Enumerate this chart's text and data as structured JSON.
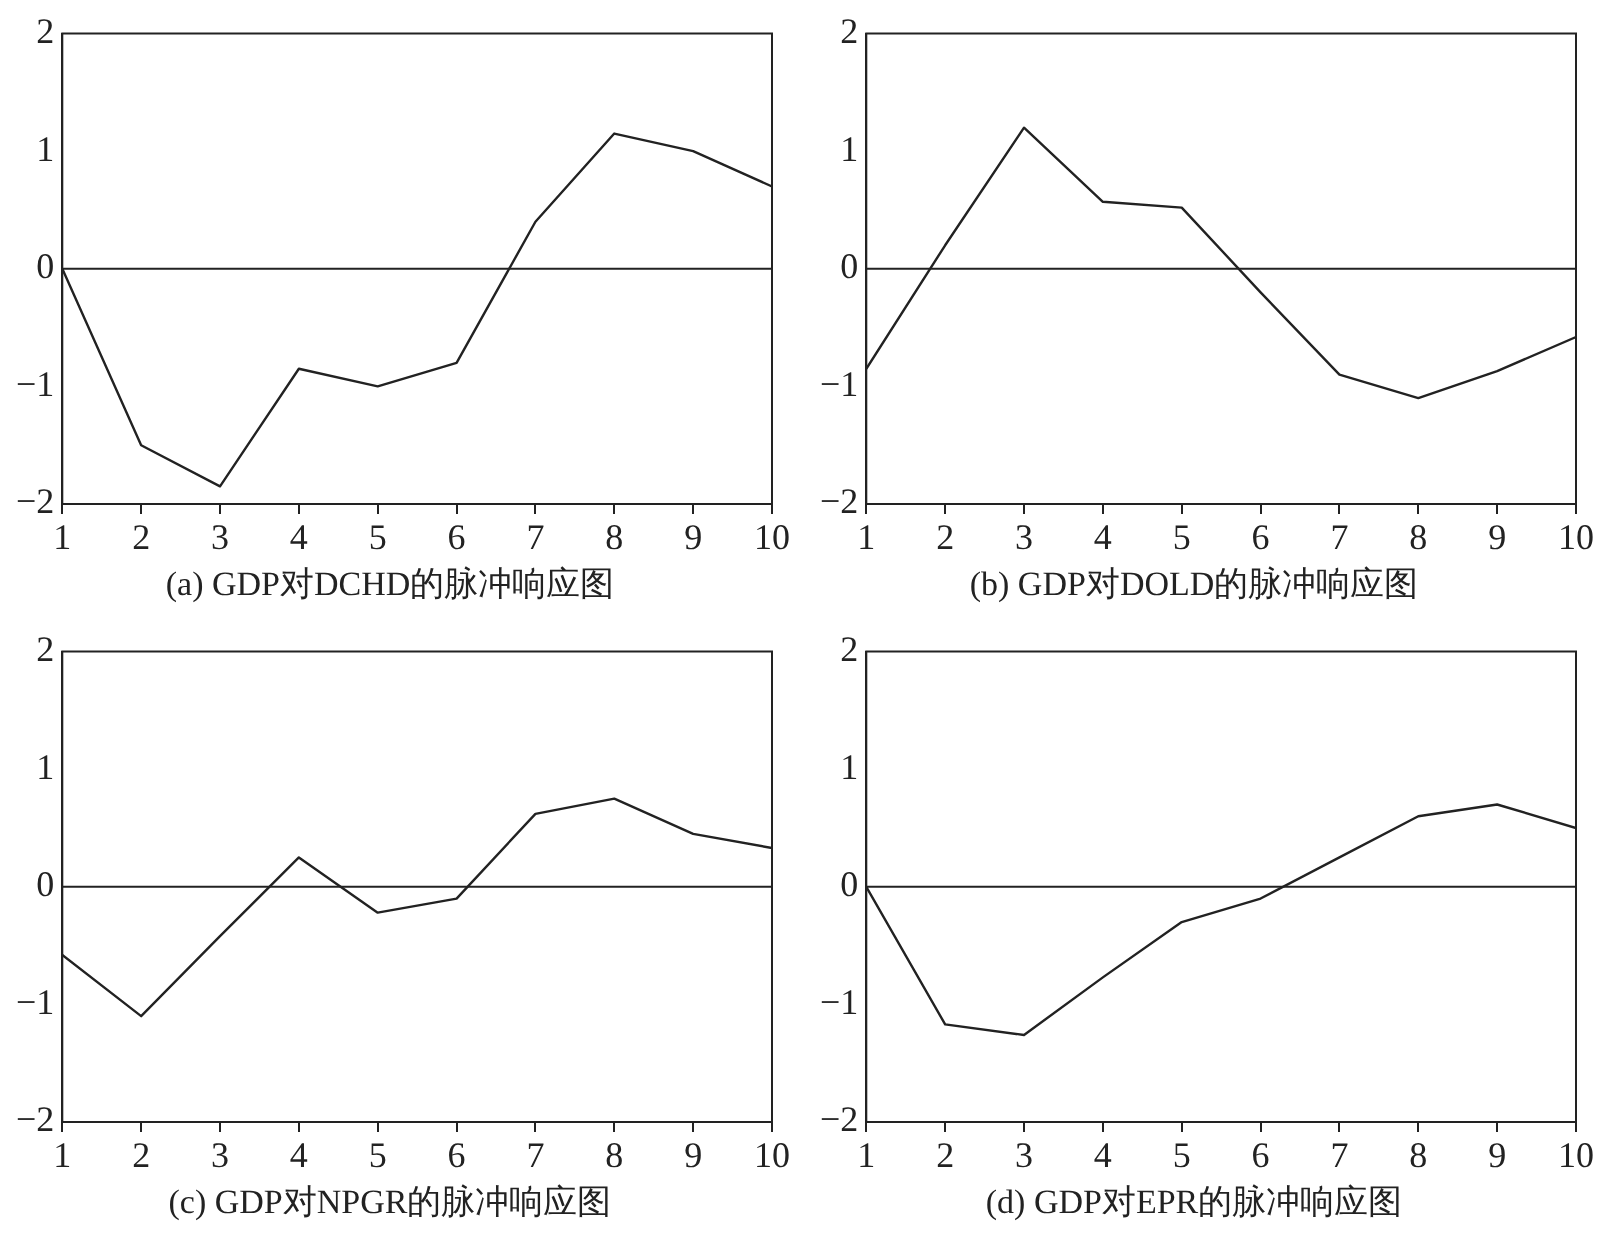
{
  "chart_data": [
    {
      "type": "line",
      "title": "(a) GDP对DCHD的脉冲响应图",
      "x": [
        1,
        2,
        3,
        4,
        5,
        6,
        7,
        8,
        9,
        10
      ],
      "values": [
        0,
        -1.5,
        -1.85,
        -0.85,
        -1.0,
        -0.8,
        0.4,
        1.15,
        1.0,
        0.7
      ],
      "color": "#222222",
      "xlim": [
        1,
        10
      ],
      "xticks": [
        1,
        2,
        3,
        4,
        5,
        6,
        7,
        8,
        9,
        10
      ],
      "ylim": [
        -2,
        2
      ],
      "yticks": [
        -2,
        -1,
        0,
        1,
        2
      ],
      "grid": false,
      "legend": false,
      "marker": "none",
      "line_style": "solid",
      "ref_lines": [
        {
          "axis": "y",
          "value": 0,
          "label": null,
          "color": "#222222"
        }
      ]
    },
    {
      "type": "line",
      "title": "(b) GDP对DOLD的脉冲响应图",
      "x": [
        1,
        2,
        3,
        4,
        5,
        6,
        7,
        8,
        9,
        10
      ],
      "values": [
        -0.85,
        0.2,
        1.2,
        0.57,
        0.52,
        -0.2,
        -0.9,
        -1.1,
        -0.87,
        -0.58
      ],
      "color": "#222222",
      "xlim": [
        1,
        10
      ],
      "xticks": [
        1,
        2,
        3,
        4,
        5,
        6,
        7,
        8,
        9,
        10
      ],
      "ylim": [
        -2,
        2
      ],
      "yticks": [
        -2,
        -1,
        0,
        1,
        2
      ],
      "grid": false,
      "legend": false,
      "marker": "none",
      "line_style": "solid",
      "ref_lines": [
        {
          "axis": "y",
          "value": 0,
          "label": null,
          "color": "#222222"
        }
      ]
    },
    {
      "type": "line",
      "title": "(c) GDP对NPGR的脉冲响应图",
      "x": [
        1,
        2,
        3,
        4,
        5,
        6,
        7,
        8,
        9,
        10
      ],
      "values": [
        -0.58,
        -1.1,
        -0.42,
        0.25,
        -0.22,
        -0.1,
        0.62,
        0.75,
        0.45,
        0.33
      ],
      "color": "#222222",
      "xlim": [
        1,
        10
      ],
      "xticks": [
        1,
        2,
        3,
        4,
        5,
        6,
        7,
        8,
        9,
        10
      ],
      "ylim": [
        -2,
        2
      ],
      "yticks": [
        -2,
        -1,
        0,
        1,
        2
      ],
      "grid": false,
      "legend": false,
      "marker": "none",
      "line_style": "solid",
      "ref_lines": [
        {
          "axis": "y",
          "value": 0,
          "label": null,
          "color": "#222222"
        }
      ]
    },
    {
      "type": "line",
      "title": "(d) GDP对EPR的脉冲响应图",
      "x": [
        1,
        2,
        3,
        4,
        5,
        6,
        7,
        8,
        9,
        10
      ],
      "values": [
        0,
        -1.17,
        -1.26,
        -0.77,
        -0.3,
        -0.1,
        0.25,
        0.6,
        0.7,
        0.5
      ],
      "color": "#222222",
      "xlim": [
        1,
        10
      ],
      "xticks": [
        1,
        2,
        3,
        4,
        5,
        6,
        7,
        8,
        9,
        10
      ],
      "ylim": [
        -2,
        2
      ],
      "yticks": [
        -2,
        -1,
        0,
        1,
        2
      ],
      "grid": false,
      "legend": false,
      "marker": "none",
      "line_style": "solid",
      "ref_lines": [
        {
          "axis": "y",
          "value": 0,
          "label": null,
          "color": "#222222"
        }
      ]
    }
  ]
}
